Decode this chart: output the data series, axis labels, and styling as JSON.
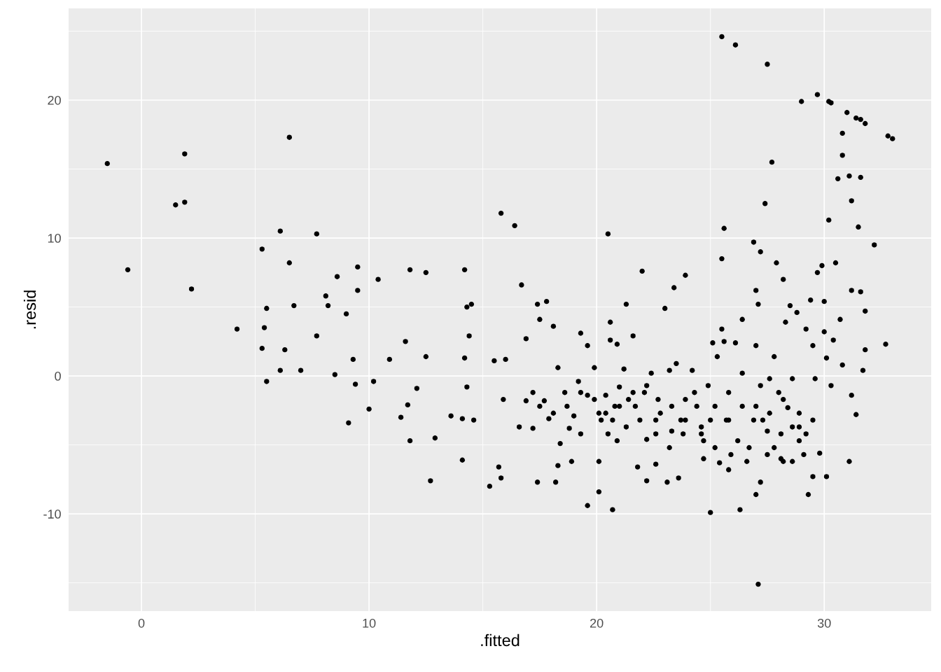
{
  "chart_data": {
    "type": "scatter",
    "xlabel": ".fitted",
    "ylabel": ".resid",
    "xlim": [
      -3.2,
      34.7
    ],
    "ylim": [
      -17.05,
      26.65
    ],
    "xticks": [
      0,
      10,
      20,
      30
    ],
    "yticks": [
      -10,
      0,
      10,
      20
    ],
    "grid": true,
    "marker": "circle",
    "series": [
      {
        "color": "#000000",
        "x": [
          -1.5,
          -0.6,
          1.5,
          1.9,
          1.9,
          2.2,
          4.2,
          5.3,
          5.3,
          5.4,
          5.5,
          5.5,
          6.1,
          6.1,
          6.3,
          6.5,
          6.5,
          6.7,
          7.0,
          7.7,
          7.7,
          8.1,
          8.2,
          8.5,
          8.6,
          9.0,
          9.1,
          9.3,
          9.4,
          9.5,
          9.5,
          10.0,
          10.2,
          10.4,
          10.9,
          11.4,
          11.6,
          11.7,
          11.8,
          11.8,
          12.1,
          12.5,
          12.7,
          12.9,
          12.5,
          13.6,
          14.2,
          14.2,
          14.3,
          14.4,
          14.3,
          14.1,
          14.1,
          14.5,
          14.6,
          15.3,
          15.5,
          15.7,
          15.8,
          15.8,
          15.9,
          16.0,
          16.4,
          16.6,
          16.7,
          16.9,
          16.9,
          17.2,
          17.4,
          17.4,
          17.5,
          17.7,
          17.8,
          17.9,
          18.1,
          18.2,
          18.3,
          18.3,
          18.4,
          18.6,
          18.8,
          18.9,
          19.0,
          19.2,
          19.3,
          19.3,
          19.6,
          19.6,
          19.6,
          19.9,
          20.1,
          20.1,
          20.2,
          20.4,
          20.5,
          20.5,
          20.6,
          20.6,
          20.7,
          20.8,
          20.9,
          20.9,
          21.0,
          21.2,
          21.3,
          21.4,
          21.6,
          21.7,
          21.8,
          22.0,
          22.1,
          22.2,
          22.2,
          22.4,
          22.6,
          22.6,
          22.8,
          23.0,
          23.1,
          23.2,
          23.3,
          23.4,
          23.5,
          23.6,
          23.7,
          23.9,
          23.9,
          24.2,
          24.3,
          24.6,
          24.7,
          24.7,
          24.9,
          25.0,
          25.1,
          25.2,
          25.3,
          25.4,
          25.5,
          25.5,
          25.5,
          25.6,
          25.6,
          25.7,
          25.8,
          25.8,
          26.1,
          26.1,
          26.2,
          26.3,
          26.4,
          26.4,
          26.6,
          26.9,
          26.9,
          27.0,
          27.0,
          27.0,
          27.1,
          27.2,
          27.2,
          27.1,
          27.2,
          27.4,
          27.5,
          27.5,
          27.6,
          27.7,
          27.8,
          27.9,
          28.0,
          28.1,
          28.2,
          28.3,
          28.4,
          28.5,
          28.6,
          28.6,
          28.8,
          28.9,
          29.0,
          29.1,
          29.2,
          29.3,
          29.4,
          29.5,
          29.5,
          29.6,
          29.7,
          29.7,
          29.8,
          29.9,
          30.0,
          30.0,
          30.1,
          30.1,
          30.2,
          30.2,
          30.3,
          30.3,
          30.4,
          30.5,
          30.6,
          30.7,
          30.8,
          30.8,
          30.8,
          31.0,
          31.1,
          31.1,
          31.2,
          31.2,
          31.2,
          31.4,
          31.4,
          31.5,
          31.6,
          31.6,
          31.6,
          31.7,
          31.8,
          31.8,
          31.8,
          32.2,
          32.7,
          32.8,
          33.0,
          27.8,
          28.1,
          28.6,
          28.9,
          28.2,
          27.5,
          27.3,
          26.7,
          25.9,
          25.2,
          24.6,
          23.9,
          23.3,
          22.7,
          22.2,
          21.6,
          21.0,
          20.4,
          19.9,
          19.3,
          18.7,
          18.1,
          17.5,
          17.2,
          29.2,
          29.5,
          28.9,
          28.2,
          27.6,
          27.0,
          26.4,
          25.8,
          25.0,
          24.4,
          23.8,
          23.2,
          22.6,
          21.9,
          21.3,
          20.7,
          20.1
        ],
        "values": [
          15.4,
          7.7,
          12.4,
          12.6,
          16.1,
          6.3,
          3.4,
          9.2,
          2.0,
          3.5,
          4.9,
          -0.4,
          10.5,
          0.4,
          1.9,
          17.3,
          8.2,
          5.1,
          0.4,
          2.9,
          10.3,
          5.8,
          5.1,
          0.1,
          7.2,
          4.5,
          -3.4,
          1.2,
          -0.6,
          7.9,
          6.2,
          -2.4,
          -0.4,
          7.0,
          1.2,
          -3.0,
          2.5,
          -2.1,
          7.7,
          -4.7,
          -0.9,
          7.5,
          -7.6,
          -4.5,
          1.4,
          -2.9,
          7.7,
          1.3,
          5.0,
          2.9,
          -0.8,
          -3.1,
          -6.1,
          5.2,
          -3.2,
          -8.0,
          1.1,
          -6.6,
          11.8,
          -7.4,
          -1.7,
          1.2,
          10.9,
          -3.7,
          6.6,
          2.7,
          -1.8,
          -3.8,
          -7.7,
          5.2,
          4.1,
          -1.8,
          5.4,
          -3.1,
          3.6,
          -7.7,
          0.6,
          -6.5,
          -4.9,
          -1.2,
          -3.8,
          -6.2,
          -2.9,
          -0.4,
          -4.2,
          3.1,
          -1.4,
          -9.4,
          2.2,
          0.6,
          -6.2,
          -8.4,
          -3.2,
          -1.4,
          10.3,
          -4.2,
          3.9,
          2.6,
          -9.7,
          -2.2,
          2.3,
          -4.7,
          -0.8,
          0.5,
          5.2,
          -1.7,
          2.9,
          -2.2,
          -6.6,
          7.6,
          -1.2,
          -4.6,
          -7.6,
          0.2,
          -3.2,
          -6.4,
          -2.7,
          4.9,
          -7.7,
          0.4,
          -4.0,
          6.4,
          0.9,
          -7.4,
          -3.2,
          7.3,
          -1.7,
          0.4,
          -1.2,
          -3.7,
          -6.0,
          -4.7,
          -0.7,
          -9.9,
          2.4,
          -2.2,
          1.4,
          -6.3,
          3.4,
          24.6,
          8.5,
          10.7,
          2.5,
          -3.2,
          -6.8,
          -1.2,
          2.4,
          24.0,
          -4.7,
          -9.7,
          4.1,
          0.2,
          -6.2,
          -3.2,
          9.7,
          6.2,
          2.2,
          -8.6,
          -15.1,
          -7.7,
          9.0,
          5.2,
          -0.7,
          12.5,
          22.6,
          -4.0,
          -0.2,
          15.5,
          1.4,
          8.2,
          -1.2,
          -4.2,
          7.0,
          3.9,
          -2.3,
          5.1,
          -6.2,
          -0.2,
          4.6,
          -3.7,
          19.9,
          -5.7,
          3.4,
          -8.6,
          5.5,
          -7.3,
          2.2,
          -0.2,
          20.4,
          7.5,
          -5.6,
          8.0,
          3.2,
          5.4,
          1.3,
          -7.3,
          11.3,
          19.9,
          -0.7,
          19.8,
          2.6,
          8.2,
          14.3,
          4.1,
          0.8,
          16.0,
          17.6,
          19.1,
          14.5,
          -6.2,
          12.7,
          6.2,
          -1.4,
          -2.8,
          18.7,
          10.8,
          6.1,
          18.6,
          14.4,
          0.4,
          1.9,
          18.3,
          4.7,
          9.5,
          2.3,
          17.4,
          17.2,
          -5.2,
          -6.0,
          -3.7,
          -4.7,
          -6.2,
          -5.7,
          -3.2,
          -5.2,
          -5.7,
          -5.2,
          -4.2,
          -3.2,
          -2.2,
          -1.7,
          -0.7,
          -1.2,
          -2.2,
          -2.7,
          -1.7,
          -1.2,
          -2.2,
          -2.7,
          -2.2,
          -1.2,
          -4.2,
          -3.2,
          -2.7,
          -1.7,
          -2.7,
          -2.2,
          -2.2,
          -3.2,
          -3.2,
          -2.2,
          -4.2,
          -5.2,
          -4.2,
          -3.2,
          -3.7,
          -3.2,
          -2.7
        ]
      }
    ]
  }
}
